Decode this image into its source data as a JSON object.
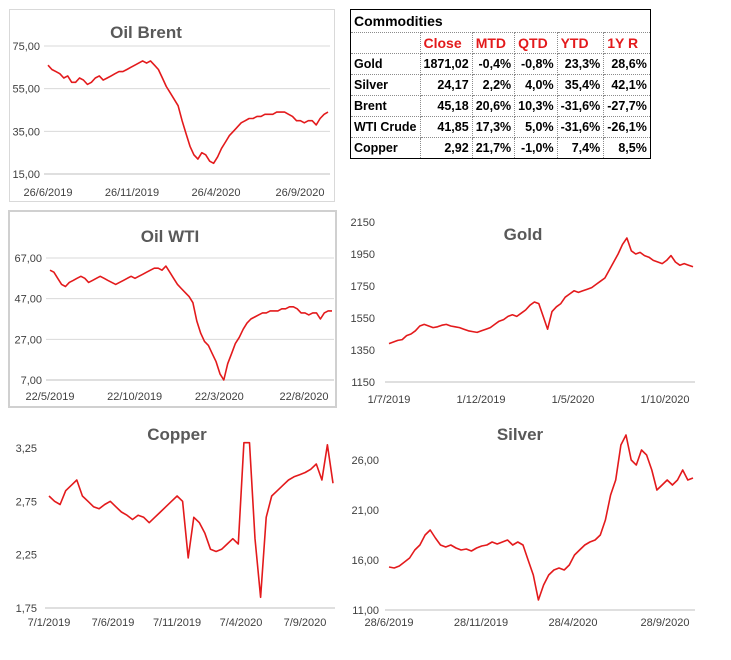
{
  "colors": {
    "series": "#e31a1c",
    "header_text": "#e31a1c"
  },
  "table": {
    "title": "Commodities",
    "headers": [
      "",
      "Close",
      "MTD",
      "QTD",
      "YTD",
      "1Y R"
    ],
    "rows": [
      [
        "Gold",
        "1871,02",
        "-0,4%",
        "-0,8%",
        "23,3%",
        "28,6%"
      ],
      [
        "Silver",
        "24,17",
        "2,2%",
        "4,0%",
        "35,4%",
        "42,1%"
      ],
      [
        "Brent",
        "45,18",
        "20,6%",
        "10,3%",
        "-31,6%",
        "-27,7%"
      ],
      [
        "WTI Crude",
        "41,85",
        "17,3%",
        "5,0%",
        "-31,6%",
        "-26,1%"
      ],
      [
        "Copper",
        "2,92",
        "21,7%",
        "-1,0%",
        "7,4%",
        "8,5%"
      ]
    ]
  },
  "chart_data": [
    {
      "id": "brent",
      "type": "line",
      "title": "Oil Brent",
      "grid": true,
      "ylim": [
        15,
        75
      ],
      "yticks": [
        "75,00",
        "55,00",
        "35,00",
        "15,00"
      ],
      "xticks": [
        "26/6/2019",
        "26/11/2019",
        "26/4/2020",
        "26/9/2020"
      ],
      "series": [
        {
          "values": [
            66,
            64,
            63,
            62,
            60,
            61,
            58,
            58,
            60,
            59,
            57,
            58,
            60,
            61,
            59,
            60,
            61,
            62,
            63,
            63,
            64,
            65,
            66,
            67,
            68,
            67,
            68,
            66,
            64,
            60,
            56,
            53,
            50,
            47,
            40,
            34,
            28,
            24,
            22,
            25,
            24,
            21,
            20,
            23,
            27,
            30,
            33,
            35,
            37,
            39,
            40,
            41,
            41,
            42,
            42,
            43,
            43,
            43,
            44,
            44,
            44,
            43,
            42,
            40,
            40,
            39,
            40,
            40,
            38,
            41,
            43,
            44
          ]
        }
      ]
    },
    {
      "id": "wti",
      "type": "line",
      "title": "Oil WTI",
      "grid": true,
      "ylim": [
        7,
        67
      ],
      "yticks": [
        "67,00",
        "47,00",
        "27,00",
        "7,00"
      ],
      "xticks": [
        "22/5/2019",
        "22/10/2019",
        "22/3/2020",
        "22/8/2020"
      ],
      "series": [
        {
          "values": [
            61,
            60,
            57,
            54,
            53,
            55,
            56,
            57,
            58,
            57,
            55,
            56,
            57,
            58,
            57,
            56,
            55,
            54,
            55,
            56,
            57,
            58,
            57,
            58,
            59,
            60,
            61,
            62,
            62,
            61,
            63,
            60,
            57,
            54,
            52,
            50,
            48,
            45,
            36,
            30,
            26,
            24,
            20,
            16,
            10,
            7,
            15,
            20,
            25,
            28,
            32,
            35,
            37,
            38,
            39,
            40,
            40,
            41,
            41,
            41,
            42,
            42,
            43,
            43,
            42,
            40,
            40,
            39,
            40,
            40,
            37,
            40,
            41,
            41
          ]
        }
      ]
    },
    {
      "id": "gold",
      "type": "line",
      "title": "Gold",
      "grid": false,
      "ylim": [
        1150,
        2150
      ],
      "yticks": [
        "2150",
        "1950",
        "1750",
        "1550",
        "1350",
        "1150"
      ],
      "xticks": [
        "1/7/2019",
        "1/12/2019",
        "1/5/2020",
        "1/10/2020"
      ],
      "series": [
        {
          "values": [
            1390,
            1400,
            1410,
            1415,
            1440,
            1450,
            1470,
            1500,
            1510,
            1500,
            1490,
            1495,
            1505,
            1510,
            1500,
            1495,
            1490,
            1480,
            1470,
            1465,
            1460,
            1470,
            1480,
            1490,
            1510,
            1530,
            1540,
            1560,
            1570,
            1560,
            1580,
            1600,
            1630,
            1650,
            1640,
            1560,
            1480,
            1590,
            1620,
            1640,
            1680,
            1700,
            1720,
            1710,
            1720,
            1730,
            1740,
            1760,
            1780,
            1800,
            1850,
            1900,
            1950,
            2010,
            2050,
            1970,
            1950,
            1960,
            1940,
            1930,
            1910,
            1900,
            1890,
            1910,
            1940,
            1900,
            1880,
            1890,
            1880,
            1870
          ]
        }
      ]
    },
    {
      "id": "copper",
      "type": "line",
      "title": "Copper",
      "grid": false,
      "ylim": [
        1.75,
        3.25
      ],
      "yticks": [
        "3,25",
        "2,75",
        "2,25",
        "1,75"
      ],
      "xticks": [
        "7/1/2019",
        "7/6/2019",
        "7/11/2019",
        "7/4/2020",
        "7/9/2020"
      ],
      "series": [
        {
          "values": [
            2.8,
            2.75,
            2.72,
            2.85,
            2.9,
            2.95,
            2.8,
            2.75,
            2.7,
            2.68,
            2.72,
            2.75,
            2.7,
            2.65,
            2.62,
            2.58,
            2.62,
            2.6,
            2.55,
            2.6,
            2.65,
            2.7,
            2.75,
            2.8,
            2.75,
            2.22,
            2.6,
            2.55,
            2.45,
            2.3,
            2.28,
            2.3,
            2.35,
            2.4,
            2.35,
            3.3,
            3.3,
            2.4,
            1.85,
            2.6,
            2.8,
            2.85,
            2.9,
            2.95,
            2.98,
            3.0,
            3.02,
            3.05,
            3.1,
            2.95,
            3.28,
            2.92
          ]
        }
      ]
    },
    {
      "id": "silver",
      "type": "line",
      "title": "Silver",
      "grid": false,
      "ylim": [
        11,
        26
      ],
      "yticks": [
        "26,00",
        "21,00",
        "16,00",
        "11,00"
      ],
      "xticks": [
        "28/6/2019",
        "28/11/2019",
        "28/4/2020",
        "28/9/2020"
      ],
      "series": [
        {
          "values": [
            15.3,
            15.2,
            15.4,
            15.8,
            16.2,
            17.0,
            17.5,
            18.5,
            19.0,
            18.2,
            17.5,
            17.3,
            17.5,
            17.2,
            17.0,
            17.1,
            16.9,
            17.2,
            17.4,
            17.5,
            17.8,
            17.6,
            17.8,
            18.0,
            17.5,
            17.8,
            17.5,
            16.0,
            14.5,
            12.0,
            13.5,
            14.5,
            15.0,
            15.2,
            15.0,
            15.5,
            16.5,
            17.0,
            17.5,
            17.8,
            18.0,
            18.5,
            20.0,
            22.5,
            24.0,
            27.5,
            28.5,
            26.0,
            25.5,
            27.0,
            26.5,
            25.0,
            23.0,
            23.5,
            24.0,
            23.5,
            24.0,
            25.0,
            24.0,
            24.2
          ]
        }
      ]
    }
  ]
}
